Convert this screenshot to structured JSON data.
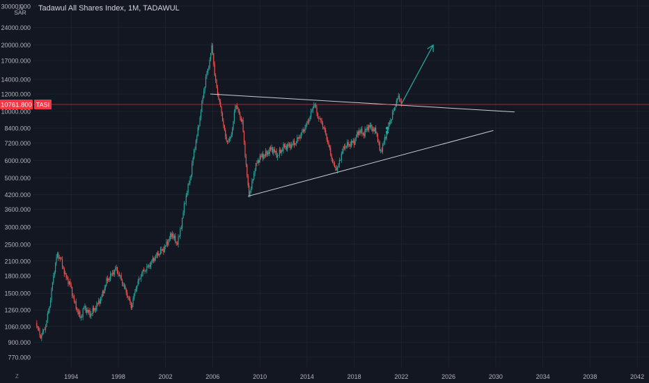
{
  "chart_title": "Tadawul All Shares Index, 1M, TADAWUL",
  "currency": "SAR",
  "currency_symbol": "﷼",
  "scale_mode": "Z",
  "colors": {
    "background": "#131722",
    "grid": "#1e222d",
    "up": "#26a69a",
    "down": "#ef5350",
    "price_line": "#f23645",
    "trendline": "#c8ccd6",
    "arrow": "#26a69a",
    "axis_text": "#b2b5be"
  },
  "chart_data": {
    "type": "line",
    "series": [
      {
        "values": [
          [
            1991.0,
            1100
          ],
          [
            1991.4,
            950
          ],
          [
            1991.8,
            1050
          ],
          [
            1992.2,
            1350
          ],
          [
            1992.5,
            1800
          ],
          [
            1992.8,
            2250
          ],
          [
            1993.1,
            2150
          ],
          [
            1993.5,
            1800
          ],
          [
            1993.9,
            1650
          ],
          [
            1994.3,
            1350
          ],
          [
            1994.8,
            1150
          ],
          [
            1995.1,
            1300
          ],
          [
            1995.6,
            1200
          ],
          [
            1996.1,
            1300
          ],
          [
            1996.6,
            1450
          ],
          [
            1997.0,
            1700
          ],
          [
            1997.5,
            1850
          ],
          [
            1997.8,
            1950
          ],
          [
            1998.3,
            1700
          ],
          [
            1998.8,
            1450
          ],
          [
            1999.1,
            1300
          ],
          [
            1999.5,
            1600
          ],
          [
            2000.0,
            1850
          ],
          [
            2000.6,
            2000
          ],
          [
            2001.0,
            2150
          ],
          [
            2001.5,
            2300
          ],
          [
            2001.9,
            2400
          ],
          [
            2002.3,
            2650
          ],
          [
            2002.6,
            2800
          ],
          [
            2002.9,
            2500
          ],
          [
            2003.2,
            2750
          ],
          [
            2003.5,
            3500
          ],
          [
            2003.8,
            4300
          ],
          [
            2004.1,
            5000
          ],
          [
            2004.4,
            6500
          ],
          [
            2004.8,
            8500
          ],
          [
            2005.1,
            11000
          ],
          [
            2005.4,
            14000
          ],
          [
            2005.7,
            16500
          ],
          [
            2005.95,
            20000
          ],
          [
            2006.2,
            14000
          ],
          [
            2006.5,
            11500
          ],
          [
            2006.8,
            9500
          ],
          [
            2007.1,
            7500
          ],
          [
            2007.4,
            7300
          ],
          [
            2007.7,
            8500
          ],
          [
            2007.95,
            11000
          ],
          [
            2008.2,
            9800
          ],
          [
            2008.5,
            9000
          ],
          [
            2008.8,
            6000
          ],
          [
            2009.05,
            4200
          ],
          [
            2009.3,
            4600
          ],
          [
            2009.6,
            5600
          ],
          [
            2010.0,
            6200
          ],
          [
            2010.5,
            6400
          ],
          [
            2011.0,
            6800
          ],
          [
            2011.5,
            6300
          ],
          [
            2012.0,
            6900
          ],
          [
            2012.5,
            7000
          ],
          [
            2013.0,
            7200
          ],
          [
            2013.5,
            7900
          ],
          [
            2014.0,
            8800
          ],
          [
            2014.4,
            10000
          ],
          [
            2014.6,
            11000
          ],
          [
            2014.9,
            9500
          ],
          [
            2015.3,
            8800
          ],
          [
            2015.7,
            7500
          ],
          [
            2016.0,
            6400
          ],
          [
            2016.3,
            5600
          ],
          [
            2016.6,
            5500
          ],
          [
            2016.9,
            6400
          ],
          [
            2017.2,
            7000
          ],
          [
            2017.6,
            7100
          ],
          [
            2018.0,
            7300
          ],
          [
            2018.4,
            8200
          ],
          [
            2018.8,
            7900
          ],
          [
            2019.2,
            8600
          ],
          [
            2019.5,
            8400
          ],
          [
            2019.9,
            8000
          ],
          [
            2020.2,
            6500
          ],
          [
            2020.5,
            7200
          ],
          [
            2020.9,
            8600
          ],
          [
            2021.2,
            9500
          ],
          [
            2021.5,
            10800
          ],
          [
            2021.8,
            11800
          ],
          [
            2022.0,
            10762
          ]
        ]
      }
    ],
    "xlim": [
      1990.8,
      2043.0
    ],
    "ylim": [
      690,
      32000
    ],
    "log_scale": true,
    "x_ticks": [
      "1994",
      "1998",
      "2002",
      "2006",
      "2010",
      "2014",
      "2018",
      "2022",
      "2026",
      "2030",
      "2034",
      "2038",
      "2042"
    ],
    "x_tick_values": [
      1994,
      1998,
      2002,
      2006,
      2010,
      2014,
      2018,
      2022,
      2026,
      2030,
      2034,
      2038,
      2042
    ],
    "y_ticks": [
      "30000.000",
      "24000.000",
      "20000.000",
      "17000.000",
      "14000.000",
      "12000.000",
      "10000.000",
      "8400.000",
      "7200.000",
      "6000.000",
      "5000.000",
      "4200.000",
      "3600.000",
      "3000.000",
      "2500.000",
      "2100.000",
      "1800.000",
      "1500.000",
      "1260.000",
      "1060.000",
      "900.000",
      "770.000"
    ],
    "y_tick_values": [
      30000,
      24000,
      20000,
      17000,
      14000,
      12000,
      10000,
      8400,
      7200,
      6000,
      5000,
      4200,
      3600,
      3000,
      2500,
      2100,
      1800,
      1500,
      1260,
      1060,
      900,
      770
    ],
    "grid": true,
    "last_price": "10761.800",
    "last_price_value": 10761.8,
    "ticker_label": "TASI",
    "trendlines": [
      {
        "from": [
          2005.8,
          12000
        ],
        "to": [
          2031.6,
          9950
        ]
      },
      {
        "from": [
          2009.0,
          4130
        ],
        "to": [
          2029.8,
          8200
        ]
      }
    ],
    "arrow": {
      "from": [
        2022.0,
        10800
      ],
      "to": [
        2024.7,
        20000
      ]
    },
    "markers": [
      {
        "x": 2020.8,
        "y": 8050,
        "color": "#26a69a"
      },
      {
        "x": 2020.8,
        "y": 8400,
        "color": "#26a69a"
      }
    ]
  }
}
